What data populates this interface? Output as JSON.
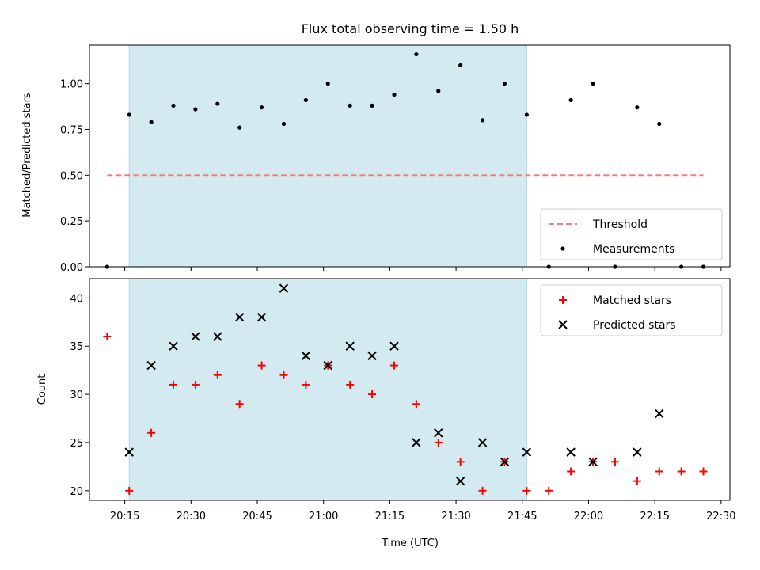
{
  "chart_data": [
    {
      "type": "scatter",
      "title": "Flux total observing time = 1.50 h",
      "xlabel": "",
      "ylabel": "Matched/Predicted stars",
      "ylim": [
        0,
        1.21
      ],
      "yticks": [
        "0.00",
        "0.25",
        "0.50",
        "0.75",
        "1.00"
      ],
      "xlim": [
        "20:07",
        "22:32"
      ],
      "xticks": [],
      "shaded_region": {
        "x_start": "20:16",
        "x_end": "21:46",
        "color": "#d4eaf1"
      },
      "threshold": {
        "name": "Threshold",
        "y": 0.5,
        "x_start": "20:11",
        "x_end": "22:26",
        "color": "#f08080",
        "style": "dashed"
      },
      "series": [
        {
          "name": "Measurements",
          "marker": "dot",
          "color": "#000000",
          "x": [
            "20:11",
            "20:16",
            "20:21",
            "20:26",
            "20:31",
            "20:36",
            "20:41",
            "20:46",
            "20:51",
            "20:56",
            "21:01",
            "21:06",
            "21:11",
            "21:16",
            "21:21",
            "21:26",
            "21:31",
            "21:36",
            "21:41",
            "21:46",
            "21:51",
            "21:56",
            "22:01",
            "22:06",
            "22:11",
            "22:16",
            "22:21",
            "22:26"
          ],
          "y": [
            0.0,
            0.83,
            0.79,
            0.88,
            0.86,
            0.89,
            0.76,
            0.87,
            0.78,
            0.91,
            1.0,
            0.88,
            0.88,
            0.94,
            1.16,
            0.96,
            1.1,
            0.8,
            1.0,
            0.83,
            0.0,
            0.91,
            1.0,
            0.0,
            0.87,
            0.78,
            0.0,
            0.0
          ]
        }
      ],
      "legend": {
        "position": "lower-right",
        "entries": [
          "Threshold",
          "Measurements"
        ]
      }
    },
    {
      "type": "scatter",
      "title": "",
      "xlabel": "Time (UTC)",
      "ylabel": "Count",
      "ylim": [
        19,
        42
      ],
      "yticks": [
        "20",
        "25",
        "30",
        "35",
        "40"
      ],
      "xlim": [
        "20:07",
        "22:32"
      ],
      "xticks": [
        "20:15",
        "20:30",
        "20:45",
        "21:00",
        "21:15",
        "21:30",
        "21:45",
        "22:00",
        "22:15",
        "22:30"
      ],
      "shaded_region": {
        "x_start": "20:16",
        "x_end": "21:46",
        "color": "#d4eaf1"
      },
      "series": [
        {
          "name": "Matched stars",
          "marker": "plus",
          "color": "#ff0000",
          "x": [
            "20:11",
            "20:16",
            "20:21",
            "20:26",
            "20:31",
            "20:36",
            "20:41",
            "20:46",
            "20:51",
            "20:56",
            "21:01",
            "21:06",
            "21:11",
            "21:16",
            "21:21",
            "21:26",
            "21:31",
            "21:36",
            "21:41",
            "21:46",
            "21:51",
            "21:56",
            "22:01",
            "22:06",
            "22:11",
            "22:16",
            "22:21",
            "22:26"
          ],
          "y": [
            36,
            20,
            26,
            31,
            31,
            32,
            29,
            33,
            32,
            31,
            33,
            31,
            30,
            33,
            29,
            25,
            23,
            20,
            23,
            20,
            20,
            22,
            23,
            23,
            21,
            22,
            22,
            22
          ]
        },
        {
          "name": "Predicted stars",
          "marker": "cross",
          "color": "#000000",
          "x": [
            "20:16",
            "20:21",
            "20:26",
            "20:31",
            "20:36",
            "20:41",
            "20:46",
            "20:51",
            "20:56",
            "21:01",
            "21:06",
            "21:11",
            "21:16",
            "21:21",
            "21:26",
            "21:31",
            "21:36",
            "21:41",
            "21:46",
            "21:56",
            "22:01",
            "22:11",
            "22:16"
          ],
          "y": [
            24,
            33,
            35,
            36,
            36,
            38,
            38,
            41,
            34,
            33,
            35,
            34,
            35,
            25,
            26,
            21,
            25,
            23,
            24,
            24,
            23,
            24,
            28
          ]
        }
      ],
      "legend": {
        "position": "top-right",
        "entries": [
          "Matched stars",
          "Predicted stars"
        ]
      }
    }
  ]
}
